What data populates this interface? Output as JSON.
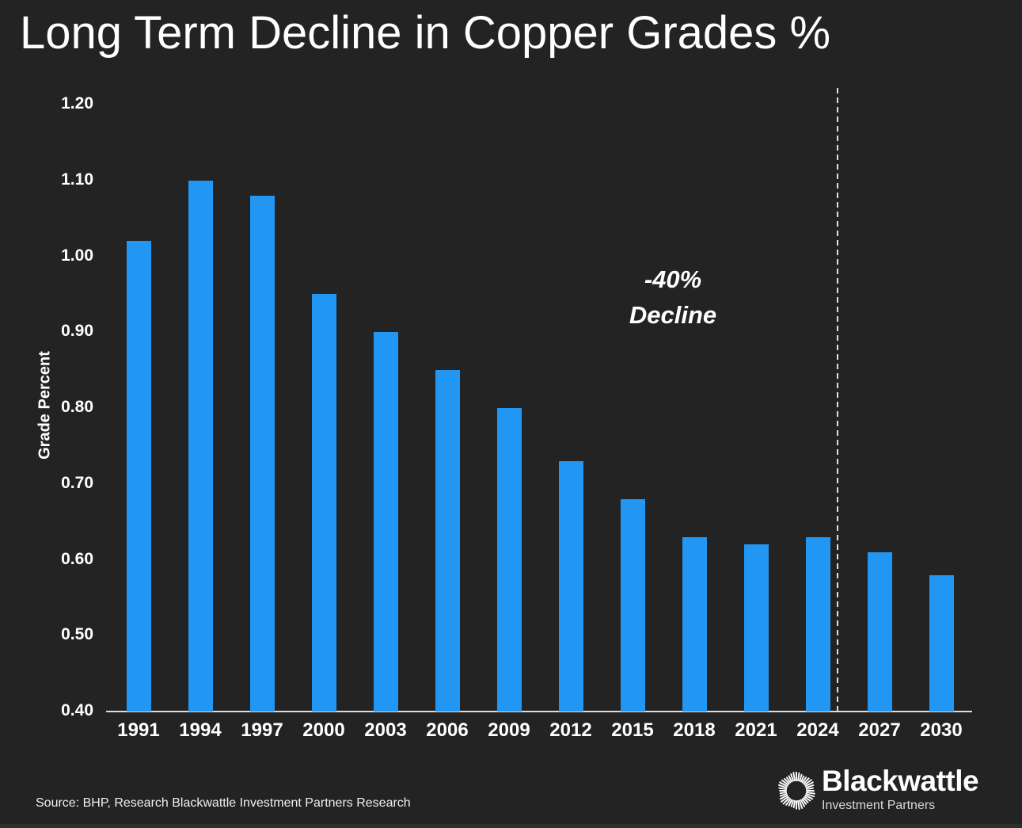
{
  "title": "Long Term Decline in Copper Grades %",
  "annotation": {
    "line1": "-40%",
    "line2": "Decline"
  },
  "source": "Source: BHP, Research Blackwattle Investment Partners Research",
  "logo": {
    "name": "Blackwattle",
    "subtitle": "Investment Partners"
  },
  "colors": {
    "background": "#232323",
    "bar": "#2196f3",
    "text": "#ffffff",
    "axis_line": "#dcdcdc",
    "dashed_line": "#e0e0e0"
  },
  "chart_data": {
    "type": "bar",
    "title": "Long Term Decline in Copper Grades %",
    "xlabel": "",
    "ylabel": "Grade Percent",
    "categories": [
      "1991",
      "1994",
      "1997",
      "2000",
      "2003",
      "2006",
      "2009",
      "2012",
      "2015",
      "2018",
      "2021",
      "2024",
      "2027",
      "2030"
    ],
    "values": [
      1.02,
      1.1,
      1.08,
      0.95,
      0.9,
      0.85,
      0.8,
      0.73,
      0.68,
      0.63,
      0.62,
      0.63,
      0.61,
      0.58
    ],
    "ylim": [
      0.4,
      1.2
    ],
    "y_ticks": [
      "1.20",
      "1.10",
      "1.00",
      "0.90",
      "0.80",
      "0.70",
      "0.60",
      "0.50",
      "0.40"
    ],
    "grid": false,
    "legend": false,
    "annotation_text": "-40% Decline",
    "dashed_divider_between": [
      "2024",
      "2027"
    ]
  }
}
